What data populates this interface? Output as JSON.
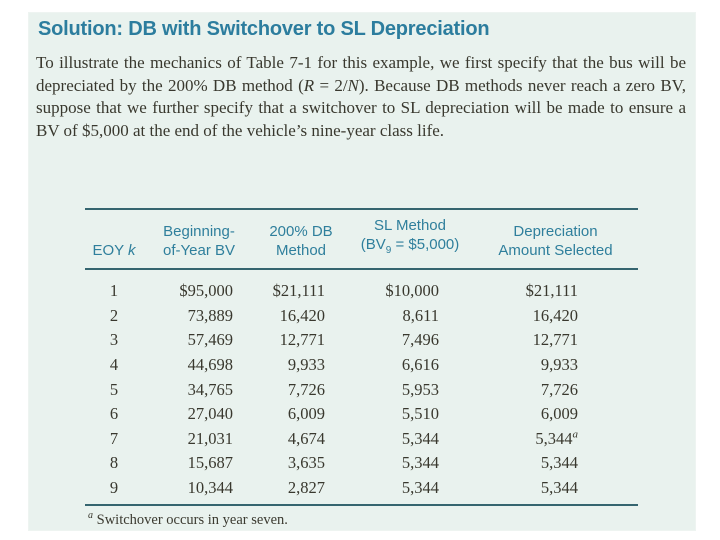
{
  "title": "Solution: DB with Switchover to SL Depreciation",
  "intro": {
    "part1": "To illustrate the mechanics of Table 7-1 for this example, we first specify that the bus will be depreciated by the 200% DB method (",
    "var_r": "R",
    "middle": " = 2/",
    "var_n": "N",
    "part2": "). Because DB methods never reach a zero BV, suppose that we further specify that a switchover to SL depreciation will be made to ensure a BV of $5,000 at the end of the vehicle’s nine-year class life."
  },
  "table": {
    "headers": {
      "eoy": {
        "label": "EOY ",
        "var": "k"
      },
      "bv": {
        "line1": "Beginning-",
        "line2": "of-Year BV"
      },
      "db": {
        "line1": "200% DB",
        "line2": "Method"
      },
      "sl": {
        "line1": "SL Method",
        "line2_pre": "(BV",
        "line2_sub": "9",
        "line2_post": " = $5,000)"
      },
      "dep": {
        "line1": "Depreciation",
        "line2": "Amount Selected"
      }
    },
    "rows": [
      {
        "eoy": "1",
        "bv": "$95,000",
        "db": "$21,111",
        "sl": "$10,000",
        "dep": "$21,111",
        "dep_sup": ""
      },
      {
        "eoy": "2",
        "bv": "73,889",
        "db": "16,420",
        "sl": "8,611",
        "dep": "16,420",
        "dep_sup": ""
      },
      {
        "eoy": "3",
        "bv": "57,469",
        "db": "12,771",
        "sl": "7,496",
        "dep": "12,771",
        "dep_sup": ""
      },
      {
        "eoy": "4",
        "bv": "44,698",
        "db": "9,933",
        "sl": "6,616",
        "dep": "9,933",
        "dep_sup": ""
      },
      {
        "eoy": "5",
        "bv": "34,765",
        "db": "7,726",
        "sl": "5,953",
        "dep": "7,726",
        "dep_sup": ""
      },
      {
        "eoy": "6",
        "bv": "27,040",
        "db": "6,009",
        "sl": "5,510",
        "dep": "6,009",
        "dep_sup": ""
      },
      {
        "eoy": "7",
        "bv": "21,031",
        "db": "4,674",
        "sl": "5,344",
        "dep": "5,344",
        "dep_sup": "a"
      },
      {
        "eoy": "8",
        "bv": "15,687",
        "db": "3,635",
        "sl": "5,344",
        "dep": "5,344",
        "dep_sup": ""
      },
      {
        "eoy": "9",
        "bv": "10,344",
        "db": "2,827",
        "sl": "5,344",
        "dep": "5,344",
        "dep_sup": ""
      }
    ],
    "footnote_marker": "a",
    "footnote": "Switchover occurs in year seven."
  },
  "colors": {
    "accent": "#2c7d9e",
    "header_text": "#2f7f9c",
    "rule": "#35656f",
    "body_text": "#39382e",
    "content_bg": "#e9f2ee",
    "page_bg": "#ffffff"
  }
}
